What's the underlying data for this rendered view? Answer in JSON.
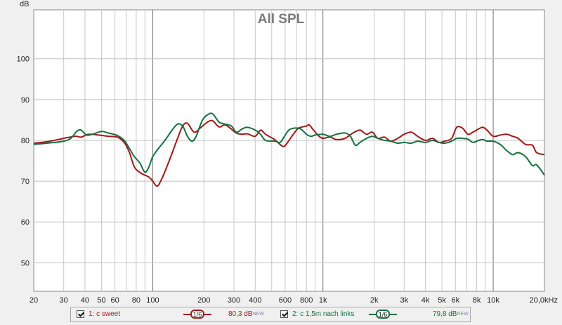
{
  "chart_data": {
    "type": "line",
    "title": "All SPL",
    "ylabel": "dB",
    "xscale": "log",
    "xlim": [
      20,
      20000
    ],
    "ylim": [
      43,
      112
    ],
    "grid": true,
    "yticks": [
      50,
      60,
      70,
      80,
      90,
      100
    ],
    "xticks": [
      {
        "v": 20,
        "label": "20"
      },
      {
        "v": 30,
        "label": "30"
      },
      {
        "v": 40,
        "label": "40"
      },
      {
        "v": 50,
        "label": "50"
      },
      {
        "v": 60,
        "label": "60"
      },
      {
        "v": 80,
        "label": "80"
      },
      {
        "v": 100,
        "label": "100"
      },
      {
        "v": 200,
        "label": "200"
      },
      {
        "v": 300,
        "label": "300"
      },
      {
        "v": 400,
        "label": "400"
      },
      {
        "v": 600,
        "label": "600"
      },
      {
        "v": 800,
        "label": "800"
      },
      {
        "v": 1000,
        "label": "1k"
      },
      {
        "v": 2000,
        "label": "2k"
      },
      {
        "v": 3000,
        "label": "3k"
      },
      {
        "v": 4000,
        "label": "4k"
      },
      {
        "v": 5000,
        "label": "5k"
      },
      {
        "v": 6000,
        "label": "6k"
      },
      {
        "v": 8000,
        "label": "8k"
      },
      {
        "v": 10000,
        "label": "10k"
      },
      {
        "v": 20000,
        "label": "20,0kHz"
      }
    ],
    "series": [
      {
        "name": "1: c sweet",
        "color": "#a01818",
        "smoothing": "1/6",
        "level": "80,3 dB",
        "points": [
          [
            20,
            79.3
          ],
          [
            25,
            79.8
          ],
          [
            30,
            80.5
          ],
          [
            35,
            81
          ],
          [
            38,
            80.8
          ],
          [
            42,
            81.5
          ],
          [
            48,
            81.3
          ],
          [
            55,
            81
          ],
          [
            62,
            80.8
          ],
          [
            68,
            79.5
          ],
          [
            73,
            77
          ],
          [
            78,
            73.5
          ],
          [
            85,
            72
          ],
          [
            95,
            71
          ],
          [
            100,
            70
          ],
          [
            106,
            68.8
          ],
          [
            112,
            70.2
          ],
          [
            125,
            75
          ],
          [
            140,
            80.5
          ],
          [
            150,
            83.5
          ],
          [
            160,
            84.2
          ],
          [
            175,
            82
          ],
          [
            190,
            83
          ],
          [
            210,
            84.5
          ],
          [
            225,
            84.8
          ],
          [
            245,
            83.3
          ],
          [
            265,
            83.8
          ],
          [
            285,
            83
          ],
          [
            310,
            81.8
          ],
          [
            335,
            81.5
          ],
          [
            360,
            81.6
          ],
          [
            400,
            81
          ],
          [
            430,
            82.5
          ],
          [
            460,
            81.5
          ],
          [
            520,
            80.2
          ],
          [
            560,
            79
          ],
          [
            590,
            78.5
          ],
          [
            620,
            79.5
          ],
          [
            670,
            81.5
          ],
          [
            720,
            83
          ],
          [
            800,
            83.5
          ],
          [
            830,
            83.8
          ],
          [
            880,
            82.5
          ],
          [
            950,
            81
          ],
          [
            1000,
            80.5
          ],
          [
            1100,
            80.8
          ],
          [
            1200,
            80.2
          ],
          [
            1350,
            80.5
          ],
          [
            1500,
            81.8
          ],
          [
            1650,
            82.5
          ],
          [
            1800,
            81.5
          ],
          [
            1950,
            82
          ],
          [
            2100,
            80.5
          ],
          [
            2300,
            80.8
          ],
          [
            2500,
            79.8
          ],
          [
            2750,
            80.5
          ],
          [
            3000,
            81.5
          ],
          [
            3300,
            82
          ],
          [
            3600,
            81
          ],
          [
            4000,
            80
          ],
          [
            4400,
            80.5
          ],
          [
            4800,
            79.5
          ],
          [
            5200,
            79.8
          ],
          [
            5700,
            80.5
          ],
          [
            6100,
            83.2
          ],
          [
            6600,
            83
          ],
          [
            7100,
            81.5
          ],
          [
            7600,
            82
          ],
          [
            8200,
            82.8
          ],
          [
            8700,
            83.2
          ],
          [
            9200,
            82.5
          ],
          [
            10000,
            81
          ],
          [
            11000,
            81.3
          ],
          [
            12000,
            81.5
          ],
          [
            13000,
            81
          ],
          [
            14000,
            80.5
          ],
          [
            15500,
            79
          ],
          [
            17000,
            78.8
          ],
          [
            18000,
            77
          ],
          [
            20000,
            76.5
          ]
        ]
      },
      {
        "name": "2: c 1,5m nach links",
        "color": "#157040",
        "smoothing": "1/6",
        "level": "79,8 dB",
        "points": [
          [
            20,
            79
          ],
          [
            25,
            79.4
          ],
          [
            30,
            79.8
          ],
          [
            33,
            80.5
          ],
          [
            36,
            82.3
          ],
          [
            38,
            82.5
          ],
          [
            41,
            81.3
          ],
          [
            45,
            81.6
          ],
          [
            50,
            82.2
          ],
          [
            55,
            81.8
          ],
          [
            62,
            81.2
          ],
          [
            68,
            80
          ],
          [
            73,
            78
          ],
          [
            78,
            76
          ],
          [
            84,
            74.5
          ],
          [
            90,
            72.2
          ],
          [
            95,
            73.5
          ],
          [
            100,
            76
          ],
          [
            108,
            78
          ],
          [
            118,
            80
          ],
          [
            130,
            82.5
          ],
          [
            140,
            84
          ],
          [
            150,
            83.5
          ],
          [
            160,
            81
          ],
          [
            170,
            79.8
          ],
          [
            180,
            81
          ],
          [
            195,
            84.8
          ],
          [
            210,
            86.3
          ],
          [
            225,
            86.5
          ],
          [
            245,
            84.5
          ],
          [
            265,
            84
          ],
          [
            290,
            83.5
          ],
          [
            310,
            82
          ],
          [
            335,
            82.8
          ],
          [
            360,
            83.2
          ],
          [
            400,
            82.5
          ],
          [
            430,
            81.5
          ],
          [
            460,
            80
          ],
          [
            520,
            79.8
          ],
          [
            560,
            79.5
          ],
          [
            590,
            80.8
          ],
          [
            630,
            82.5
          ],
          [
            680,
            83
          ],
          [
            740,
            82.8
          ],
          [
            800,
            81.5
          ],
          [
            850,
            81
          ],
          [
            900,
            81.3
          ],
          [
            1000,
            81.5
          ],
          [
            1100,
            81
          ],
          [
            1200,
            81.5
          ],
          [
            1350,
            81.8
          ],
          [
            1450,
            81
          ],
          [
            1550,
            78.8
          ],
          [
            1650,
            79.5
          ],
          [
            1800,
            80.5
          ],
          [
            1950,
            81
          ],
          [
            2100,
            80.5
          ],
          [
            2300,
            80
          ],
          [
            2500,
            79.8
          ],
          [
            2750,
            79.3
          ],
          [
            3000,
            79.5
          ],
          [
            3300,
            79.3
          ],
          [
            3600,
            79.8
          ],
          [
            4000,
            79.5
          ],
          [
            4400,
            80
          ],
          [
            4800,
            79.5
          ],
          [
            5200,
            79.3
          ],
          [
            5700,
            79.8
          ],
          [
            6100,
            80.5
          ],
          [
            6600,
            80.5
          ],
          [
            7100,
            80.3
          ],
          [
            7600,
            79.5
          ],
          [
            8200,
            80
          ],
          [
            8700,
            80.2
          ],
          [
            9200,
            79.8
          ],
          [
            10000,
            79.8
          ],
          [
            11000,
            79
          ],
          [
            12000,
            77.5
          ],
          [
            13000,
            76.5
          ],
          [
            14000,
            77
          ],
          [
            15500,
            76
          ],
          [
            17000,
            73.8
          ],
          [
            18000,
            74
          ],
          [
            20000,
            71.5
          ]
        ]
      }
    ]
  },
  "legend": {
    "items": [
      {
        "label": "1: c sweet",
        "smoothing": "1/6",
        "level": "80,3 dB",
        "badge": "NEW",
        "color": "#a01818"
      },
      {
        "label": "2: c 1,5m nach links",
        "smoothing": "1/6",
        "level": "79,8 dB",
        "badge": "NEW",
        "color": "#157040"
      }
    ]
  }
}
